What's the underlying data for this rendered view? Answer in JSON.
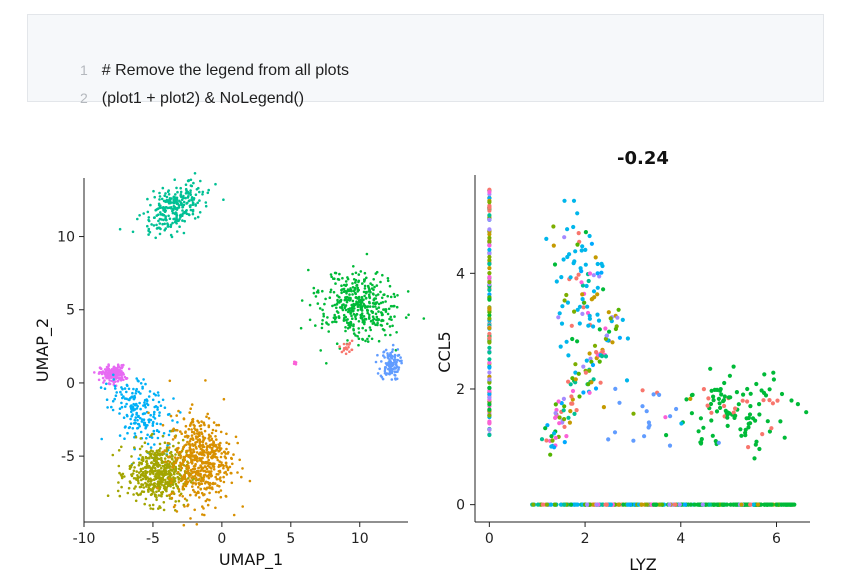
{
  "code": {
    "lines": [
      {
        "num": "1",
        "text": "# Remove the legend from all plots"
      },
      {
        "num": "2",
        "text": "(plot1 + plot2) & NoLegend()"
      }
    ]
  },
  "colors": {
    "c0": "#F8766D",
    "c1": "#C49A00",
    "c2": "#53B400",
    "c3": "#00C094",
    "c4": "#00B6EB",
    "c5": "#A58AFF",
    "c6": "#FB61D7",
    "c7": "#00A9FF",
    "c8": "#7CAE00",
    "c9": "#00BA38"
  },
  "chart_data": [
    {
      "type": "scatter",
      "title": "",
      "xlabel": "UMAP_1",
      "ylabel": "UMAP_2",
      "xlim": [
        -10,
        13.5
      ],
      "ylim": [
        -9.5,
        14
      ],
      "xticks": [
        -10,
        -5,
        0,
        5,
        10
      ],
      "yticks": [
        -5,
        0,
        5,
        10
      ],
      "xtick_labels": [
        "-10",
        "-5",
        "0",
        "5",
        "10"
      ],
      "ytick_labels": [
        "-5",
        "0",
        "5",
        "10"
      ],
      "clusters": [
        {
          "name": "cluster-teal",
          "color": "#00C094",
          "cx": -3.4,
          "cy": 12.0,
          "sx": 1.2,
          "sy": 0.7,
          "tilt": 0.55,
          "n": 260
        },
        {
          "name": "cluster-green",
          "color": "#00BA38",
          "cx": 9.9,
          "cy": 5.2,
          "sx": 1.5,
          "sy": 1.1,
          "tilt": -0.35,
          "n": 420
        },
        {
          "name": "cluster-blue",
          "color": "#619CFF",
          "cx": 12.2,
          "cy": 1.3,
          "sx": 0.35,
          "sy": 0.55,
          "tilt": 0.0,
          "n": 110
        },
        {
          "name": "cluster-red",
          "color": "#F8766D",
          "cx": 9.1,
          "cy": 2.4,
          "sx": 0.25,
          "sy": 0.2,
          "tilt": 0.6,
          "n": 18
        },
        {
          "name": "cluster-pink-small",
          "color": "#FB61D7",
          "cx": 5.3,
          "cy": 1.4,
          "sx": 0.05,
          "sy": 0.1,
          "tilt": 0.0,
          "n": 6
        },
        {
          "name": "cluster-magenta",
          "color": "#E76BF3",
          "cx": -7.9,
          "cy": 0.6,
          "sx": 0.45,
          "sy": 0.3,
          "tilt": 0.0,
          "n": 180
        },
        {
          "name": "cluster-cyan",
          "color": "#00B0F6",
          "cx": -5.8,
          "cy": -2.1,
          "sx": 0.9,
          "sy": 1.4,
          "tilt": 0.6,
          "n": 210
        },
        {
          "name": "cluster-olive",
          "color": "#A3A500",
          "cx": -4.6,
          "cy": -6.2,
          "sx": 1.1,
          "sy": 1.0,
          "tilt": 0.0,
          "n": 520
        },
        {
          "name": "cluster-gold",
          "color": "#D89000",
          "cx": -1.6,
          "cy": -5.2,
          "sx": 1.1,
          "sy": 1.5,
          "tilt": 0.0,
          "n": 560
        }
      ]
    },
    {
      "type": "scatter",
      "title": "-0.24",
      "xlabel": "LYZ",
      "ylabel": "CCL5",
      "xlim": [
        -0.3,
        6.7
      ],
      "ylim": [
        -0.3,
        5.7
      ],
      "xticks": [
        0,
        2,
        4,
        6
      ],
      "yticks": [
        0,
        2,
        4
      ],
      "xtick_labels": [
        "0",
        "2",
        "4",
        "6"
      ],
      "ytick_labels": [
        "0",
        "2",
        "4"
      ],
      "groups": [
        {
          "name": "zero-column",
          "x": 0,
          "ymin": 1.2,
          "ymax": 5.5,
          "n": 140
        },
        {
          "name": "zero-row",
          "y": 0,
          "xmin": 0.8,
          "xmax": 6.4,
          "n": 320
        },
        {
          "name": "t-cell-cloud",
          "cx": 1.9,
          "cy": 3.9,
          "sx": 0.3,
          "sy": 0.55,
          "n": 90
        },
        {
          "name": "diagonal-band",
          "cx": 1.9,
          "cy": 2.2,
          "sx": 0.45,
          "sy": 0.6,
          "n": 110
        },
        {
          "name": "mono-cloud",
          "cx": 5.2,
          "cy": 1.6,
          "sx": 0.55,
          "sy": 0.35,
          "n": 110
        },
        {
          "name": "sparse-mid",
          "cx": 3.2,
          "cy": 1.5,
          "sx": 0.5,
          "sy": 0.25,
          "n": 25
        }
      ]
    }
  ]
}
